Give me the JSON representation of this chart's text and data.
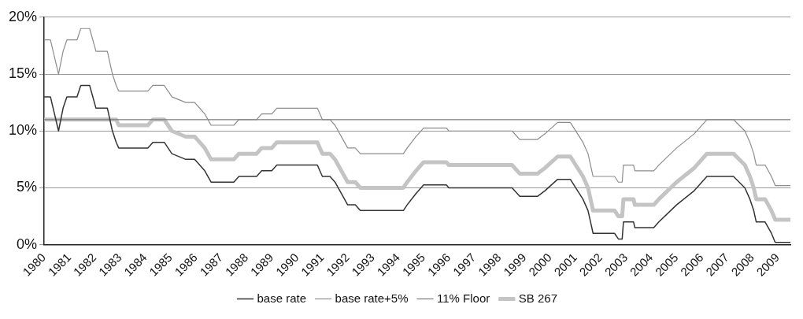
{
  "chart_data": {
    "type": "line",
    "xlim": [
      1980,
      2009.5
    ],
    "xticks": [
      1980,
      1981,
      1982,
      1983,
      1984,
      1985,
      1986,
      1987,
      1988,
      1989,
      1990,
      1991,
      1992,
      1993,
      1994,
      1995,
      1996,
      1997,
      1998,
      1999,
      2000,
      2001,
      2002,
      2003,
      2004,
      2005,
      2006,
      2007,
      2008,
      2009
    ],
    "ylim": [
      0,
      20
    ],
    "yticks": [
      {
        "value": 0,
        "label": "0%"
      },
      {
        "value": 5,
        "label": "5%"
      },
      {
        "value": 10,
        "label": "10%"
      },
      {
        "value": 15,
        "label": "15%"
      },
      {
        "value": 20,
        "label": "20%"
      }
    ],
    "grid": "y",
    "legend": "bottom",
    "marker": "none",
    "line_style": "solid",
    "series": [
      {
        "name": "base rate",
        "color": "#333333",
        "x": [
          1980,
          1980.25,
          1980.57,
          1980.75,
          1980.9,
          1981.3,
          1981.45,
          1981.8,
          1982.05,
          1982.5,
          1982.7,
          1982.85,
          1982.95,
          1984.1,
          1984.3,
          1984.75,
          1985.05,
          1985.6,
          1985.95,
          1986.35,
          1986.6,
          1987.5,
          1987.7,
          1988.4,
          1988.6,
          1989,
          1989.2,
          1990.8,
          1991,
          1991.3,
          1991.5,
          1992,
          1992.3,
          1992.5,
          1994.2,
          1994.35,
          1994.7,
          1995,
          1995.9,
          1996,
          1998.5,
          1998.8,
          1999.5,
          1999.8,
          2000.3,
          2000.8,
          2001.3,
          2001.5,
          2001.7,
          2002.55,
          2002.7,
          2002.85,
          2002.9,
          2003.3,
          2003.35,
          2004.1,
          2004.3,
          2005,
          2005.7,
          2006.2,
          2007.25,
          2007.7,
          2007.9,
          2008.05,
          2008.15,
          2008.5,
          2008.75,
          2008.9,
          2009.5
        ],
        "values": [
          13,
          13,
          10,
          12,
          13,
          13,
          14,
          14,
          12,
          12,
          10,
          9,
          8.5,
          8.5,
          9,
          9,
          8,
          7.5,
          7.5,
          6.5,
          5.5,
          5.5,
          6,
          6,
          6.5,
          6.5,
          7,
          7,
          6,
          6,
          5.5,
          3.5,
          3.5,
          3,
          3,
          3.5,
          4.5,
          5.25,
          5.25,
          5,
          5,
          4.25,
          4.25,
          4.75,
          5.75,
          5.75,
          4,
          3,
          1,
          1,
          0.5,
          0.5,
          2,
          2,
          1.5,
          1.5,
          2,
          3.5,
          4.75,
          6,
          6,
          5,
          4,
          3,
          2,
          2,
          1,
          0.2,
          0.2
        ]
      },
      {
        "name": "base rate+5%",
        "color": "#8c8c8c",
        "x": [
          1980,
          1980.25,
          1980.57,
          1980.75,
          1980.9,
          1981.3,
          1981.45,
          1981.8,
          1982.05,
          1982.5,
          1982.7,
          1982.85,
          1982.95,
          1984.1,
          1984.3,
          1984.75,
          1985.05,
          1985.6,
          1985.95,
          1986.35,
          1986.6,
          1987.5,
          1987.7,
          1988.4,
          1988.6,
          1989,
          1989.2,
          1990.8,
          1991,
          1991.3,
          1991.5,
          1992,
          1992.3,
          1992.5,
          1994.2,
          1994.35,
          1994.7,
          1995,
          1995.9,
          1996,
          1998.5,
          1998.8,
          1999.5,
          1999.8,
          2000.3,
          2000.8,
          2001.3,
          2001.5,
          2001.7,
          2002.55,
          2002.7,
          2002.85,
          2002.9,
          2003.3,
          2003.35,
          2004.1,
          2004.3,
          2005,
          2005.7,
          2006.2,
          2007.25,
          2007.7,
          2007.9,
          2008.05,
          2008.15,
          2008.5,
          2008.75,
          2008.9,
          2009.5
        ],
        "values": [
          18,
          18,
          15,
          17,
          18,
          18,
          19,
          19,
          17,
          17,
          15,
          14,
          13.5,
          13.5,
          14,
          14,
          13,
          12.5,
          12.5,
          11.5,
          10.5,
          10.5,
          11,
          11,
          11.5,
          11.5,
          12,
          12,
          11,
          11,
          10.5,
          8.5,
          8.5,
          8,
          8,
          8.5,
          9.5,
          10.25,
          10.25,
          10,
          10,
          9.25,
          9.25,
          9.75,
          10.75,
          10.75,
          9,
          8,
          6,
          6,
          5.5,
          5.5,
          7,
          7,
          6.5,
          6.5,
          7,
          8.5,
          9.75,
          11,
          11,
          10,
          9,
          8,
          7,
          7,
          6,
          5.2,
          5.2
        ]
      },
      {
        "name": "11% Floor",
        "color": "#7a7a7a",
        "x": [
          1980,
          2009.5
        ],
        "values": [
          11,
          11
        ]
      },
      {
        "name": "SB 267",
        "color": "#c4c4c4",
        "x": [
          1980,
          1982.85,
          1982.95,
          1984.1,
          1984.3,
          1984.75,
          1985.05,
          1985.6,
          1985.95,
          1986.35,
          1986.6,
          1987.5,
          1987.7,
          1988.4,
          1988.6,
          1989,
          1989.2,
          1990.8,
          1991,
          1991.3,
          1991.5,
          1992,
          1992.3,
          1992.5,
          1994.2,
          1994.35,
          1994.7,
          1995,
          1995.9,
          1996,
          1998.5,
          1998.8,
          1999.5,
          1999.8,
          2000.3,
          2000.8,
          2001.3,
          2001.5,
          2001.7,
          2002.55,
          2002.7,
          2002.85,
          2002.9,
          2003.3,
          2003.35,
          2004.1,
          2004.3,
          2005,
          2005.7,
          2006.2,
          2007.25,
          2007.7,
          2007.9,
          2008.05,
          2008.15,
          2008.5,
          2008.75,
          2008.9,
          2009.5
        ],
        "values": [
          11,
          11,
          10.5,
          10.5,
          11,
          11,
          10,
          9.5,
          9.5,
          8.5,
          7.5,
          7.5,
          8,
          8,
          8.5,
          8.5,
          9,
          9,
          8,
          8,
          7.5,
          5.5,
          5.5,
          5,
          5,
          5.5,
          6.5,
          7.25,
          7.25,
          7,
          7,
          6.25,
          6.25,
          6.75,
          7.75,
          7.75,
          6,
          5,
          3,
          3,
          2.5,
          2.5,
          4,
          4,
          3.5,
          3.5,
          4,
          5.5,
          6.75,
          8,
          8,
          7,
          6,
          5,
          4,
          4,
          3,
          2.2,
          2.2
        ]
      }
    ]
  }
}
